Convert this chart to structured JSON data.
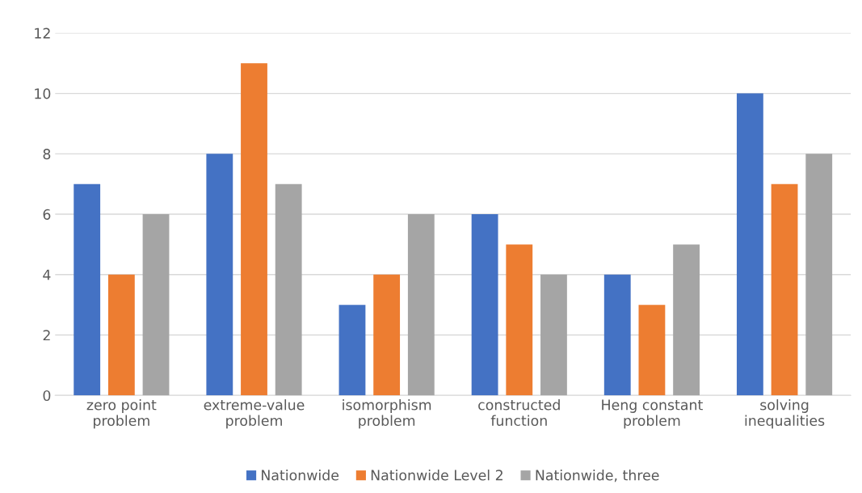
{
  "chart_data": {
    "type": "bar",
    "categories": [
      "zero point\nproblem",
      "extreme-value\nproblem",
      "isomorphism\nproblem",
      "constructed\nfunction",
      "Heng constant\nproblem",
      "solving\ninequalities"
    ],
    "series": [
      {
        "name": "Nationwide",
        "color": "#4472c4",
        "values": [
          7,
          8,
          3,
          6,
          4,
          10
        ]
      },
      {
        "name": "Nationwide Level 2",
        "color": "#ed7d31",
        "values": [
          4,
          11,
          4,
          5,
          3,
          7
        ]
      },
      {
        "name": "Nationwide, three",
        "color": "#a5a5a5",
        "values": [
          6,
          7,
          6,
          4,
          5,
          8
        ]
      }
    ],
    "ylim": [
      0,
      12
    ],
    "yticks": [
      0,
      2,
      4,
      6,
      8,
      10,
      12
    ],
    "grid": "y",
    "legend": "bottom"
  }
}
